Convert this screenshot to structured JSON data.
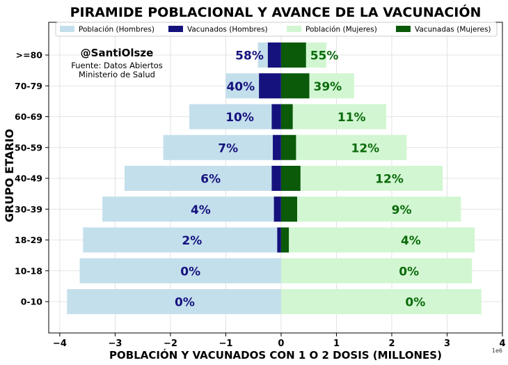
{
  "chart_data": {
    "type": "bar",
    "orientation": "horizontal",
    "title": "PIRAMIDE POBLACIONAL Y AVANCE DE LA VACUNACIÓN",
    "xlabel": "POBLACIÓN Y VACUNADOS CON 1 O 2 DOSIS (MILLONES)",
    "ylabel": "GRUPO ETARIO",
    "x_offset_label": "1e6",
    "xlim": [
      -4.2,
      4.0
    ],
    "x_ticks": [
      -4,
      -3,
      -2,
      -1,
      0,
      1,
      2,
      3,
      4
    ],
    "x_tick_labels": [
      "−4",
      "−3",
      "−2",
      "−1",
      "0",
      "1",
      "2",
      "3",
      "4"
    ],
    "grid": true,
    "legend_position": "top",
    "categories": [
      ">=80",
      "70-79",
      "60-69",
      "50-59",
      "40-49",
      "30-39",
      "18-29",
      "10-18",
      "0-10"
    ],
    "series": [
      {
        "name": "Población (Hombres)",
        "color": "#c4dfec",
        "values": [
          -0.42,
          -1.0,
          -1.66,
          -2.13,
          -2.83,
          -3.23,
          -3.58,
          -3.64,
          -3.87
        ]
      },
      {
        "name": "Vacunados (Hombres)",
        "color": "#15127d",
        "values": [
          -0.24,
          -0.4,
          -0.17,
          -0.15,
          -0.17,
          -0.13,
          -0.07,
          0,
          0
        ]
      },
      {
        "name": "Población (Mujeres)",
        "color": "#d2f6d2",
        "values": [
          0.82,
          1.32,
          1.9,
          2.27,
          2.92,
          3.25,
          3.5,
          3.45,
          3.62
        ]
      },
      {
        "name": "Vacunadas (Mujeres)",
        "color": "#0a5a0a",
        "values": [
          0.45,
          0.51,
          0.21,
          0.27,
          0.35,
          0.29,
          0.14,
          0,
          0
        ]
      }
    ],
    "men_pct_labels": [
      "58%",
      "40%",
      "10%",
      "7%",
      "6%",
      "4%",
      "2%",
      "0%",
      "0%"
    ],
    "women_pct_labels": [
      "55%",
      "39%",
      "11%",
      "12%",
      "12%",
      "9%",
      "4%",
      "0%",
      "0%"
    ],
    "annotation": {
      "handle": "@SantiOlsze",
      "source_line1": "Fuente: Datos Abiertos",
      "source_line2": "Ministerio de Salud"
    },
    "colors": {
      "men_label": "#15127d",
      "women_label": "#0a6a0a"
    }
  }
}
